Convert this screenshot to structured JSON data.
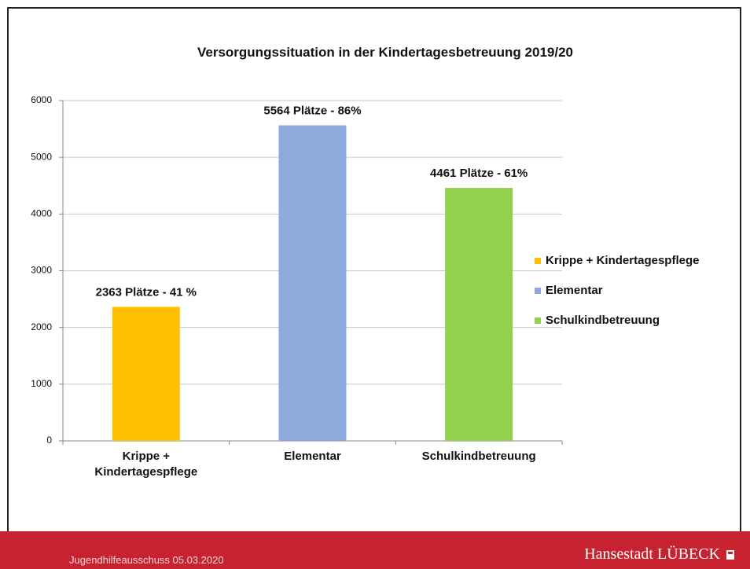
{
  "chart_data": {
    "type": "bar",
    "title": "Versorgungssituation in der Kindertagesbetreuung 2019/20",
    "categories": [
      "Krippe + Kindertagespflege",
      "Elementar",
      "Schulkindbetreuung"
    ],
    "values": [
      2363,
      5564,
      4461
    ],
    "value_labels": [
      "2363 Plätze - 41 %",
      "5564 Plätze - 86%",
      "4461 Plätze - 61%"
    ],
    "colors": [
      "#ffc000",
      "#8eaadc",
      "#92d050"
    ],
    "ylim": [
      0,
      6000
    ],
    "yticks": [
      0,
      1000,
      2000,
      3000,
      4000,
      5000,
      6000
    ],
    "grid": true,
    "legend": "right"
  },
  "footer": {
    "left": "Jugendhilfeausschuss 05.03.2020",
    "right": "Hansestadt LÜBECK"
  }
}
